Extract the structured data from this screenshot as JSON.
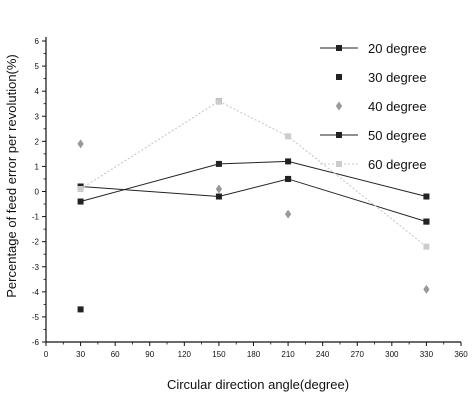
{
  "chart_data": {
    "type": "line",
    "title": "",
    "xlabel": "Circular direction angle(degree)",
    "ylabel": "Percentage of feed error per revolution(%)",
    "xlim": [
      0,
      360
    ],
    "ylim": [
      -6,
      6
    ],
    "xticks": [
      0,
      30,
      60,
      90,
      120,
      150,
      180,
      210,
      240,
      270,
      300,
      330,
      360
    ],
    "yticks": [
      -6,
      -5,
      -4,
      -3,
      -2,
      -1,
      0,
      1,
      2,
      3,
      4,
      5,
      6
    ],
    "grid": false,
    "legend_position": "top-right",
    "x": [
      30,
      150,
      210,
      330
    ],
    "series": [
      {
        "name": "20 degree",
        "values": [
          -0.4,
          1.1,
          1.2,
          -0.2
        ],
        "color": "#222222",
        "marker": "square",
        "line": "solid"
      },
      {
        "name": "30 degree",
        "values": [
          -4.7,
          3.6,
          0.5,
          -1.2
        ],
        "color": "#222222",
        "marker": "square",
        "line": "none"
      },
      {
        "name": "40 degree",
        "values": [
          1.9,
          0.1,
          -0.9,
          -3.9
        ],
        "color": "#999999",
        "marker": "diamond",
        "line": "none"
      },
      {
        "name": "50 degree",
        "values": [
          0.2,
          -0.2,
          0.5,
          -1.2
        ],
        "color": "#222222",
        "marker": "square",
        "line": "solid"
      },
      {
        "name": "60 degree",
        "values": [
          0.1,
          3.6,
          2.2,
          -2.2
        ],
        "color": "#cccccc",
        "marker": "square",
        "line": "dotted"
      }
    ]
  }
}
